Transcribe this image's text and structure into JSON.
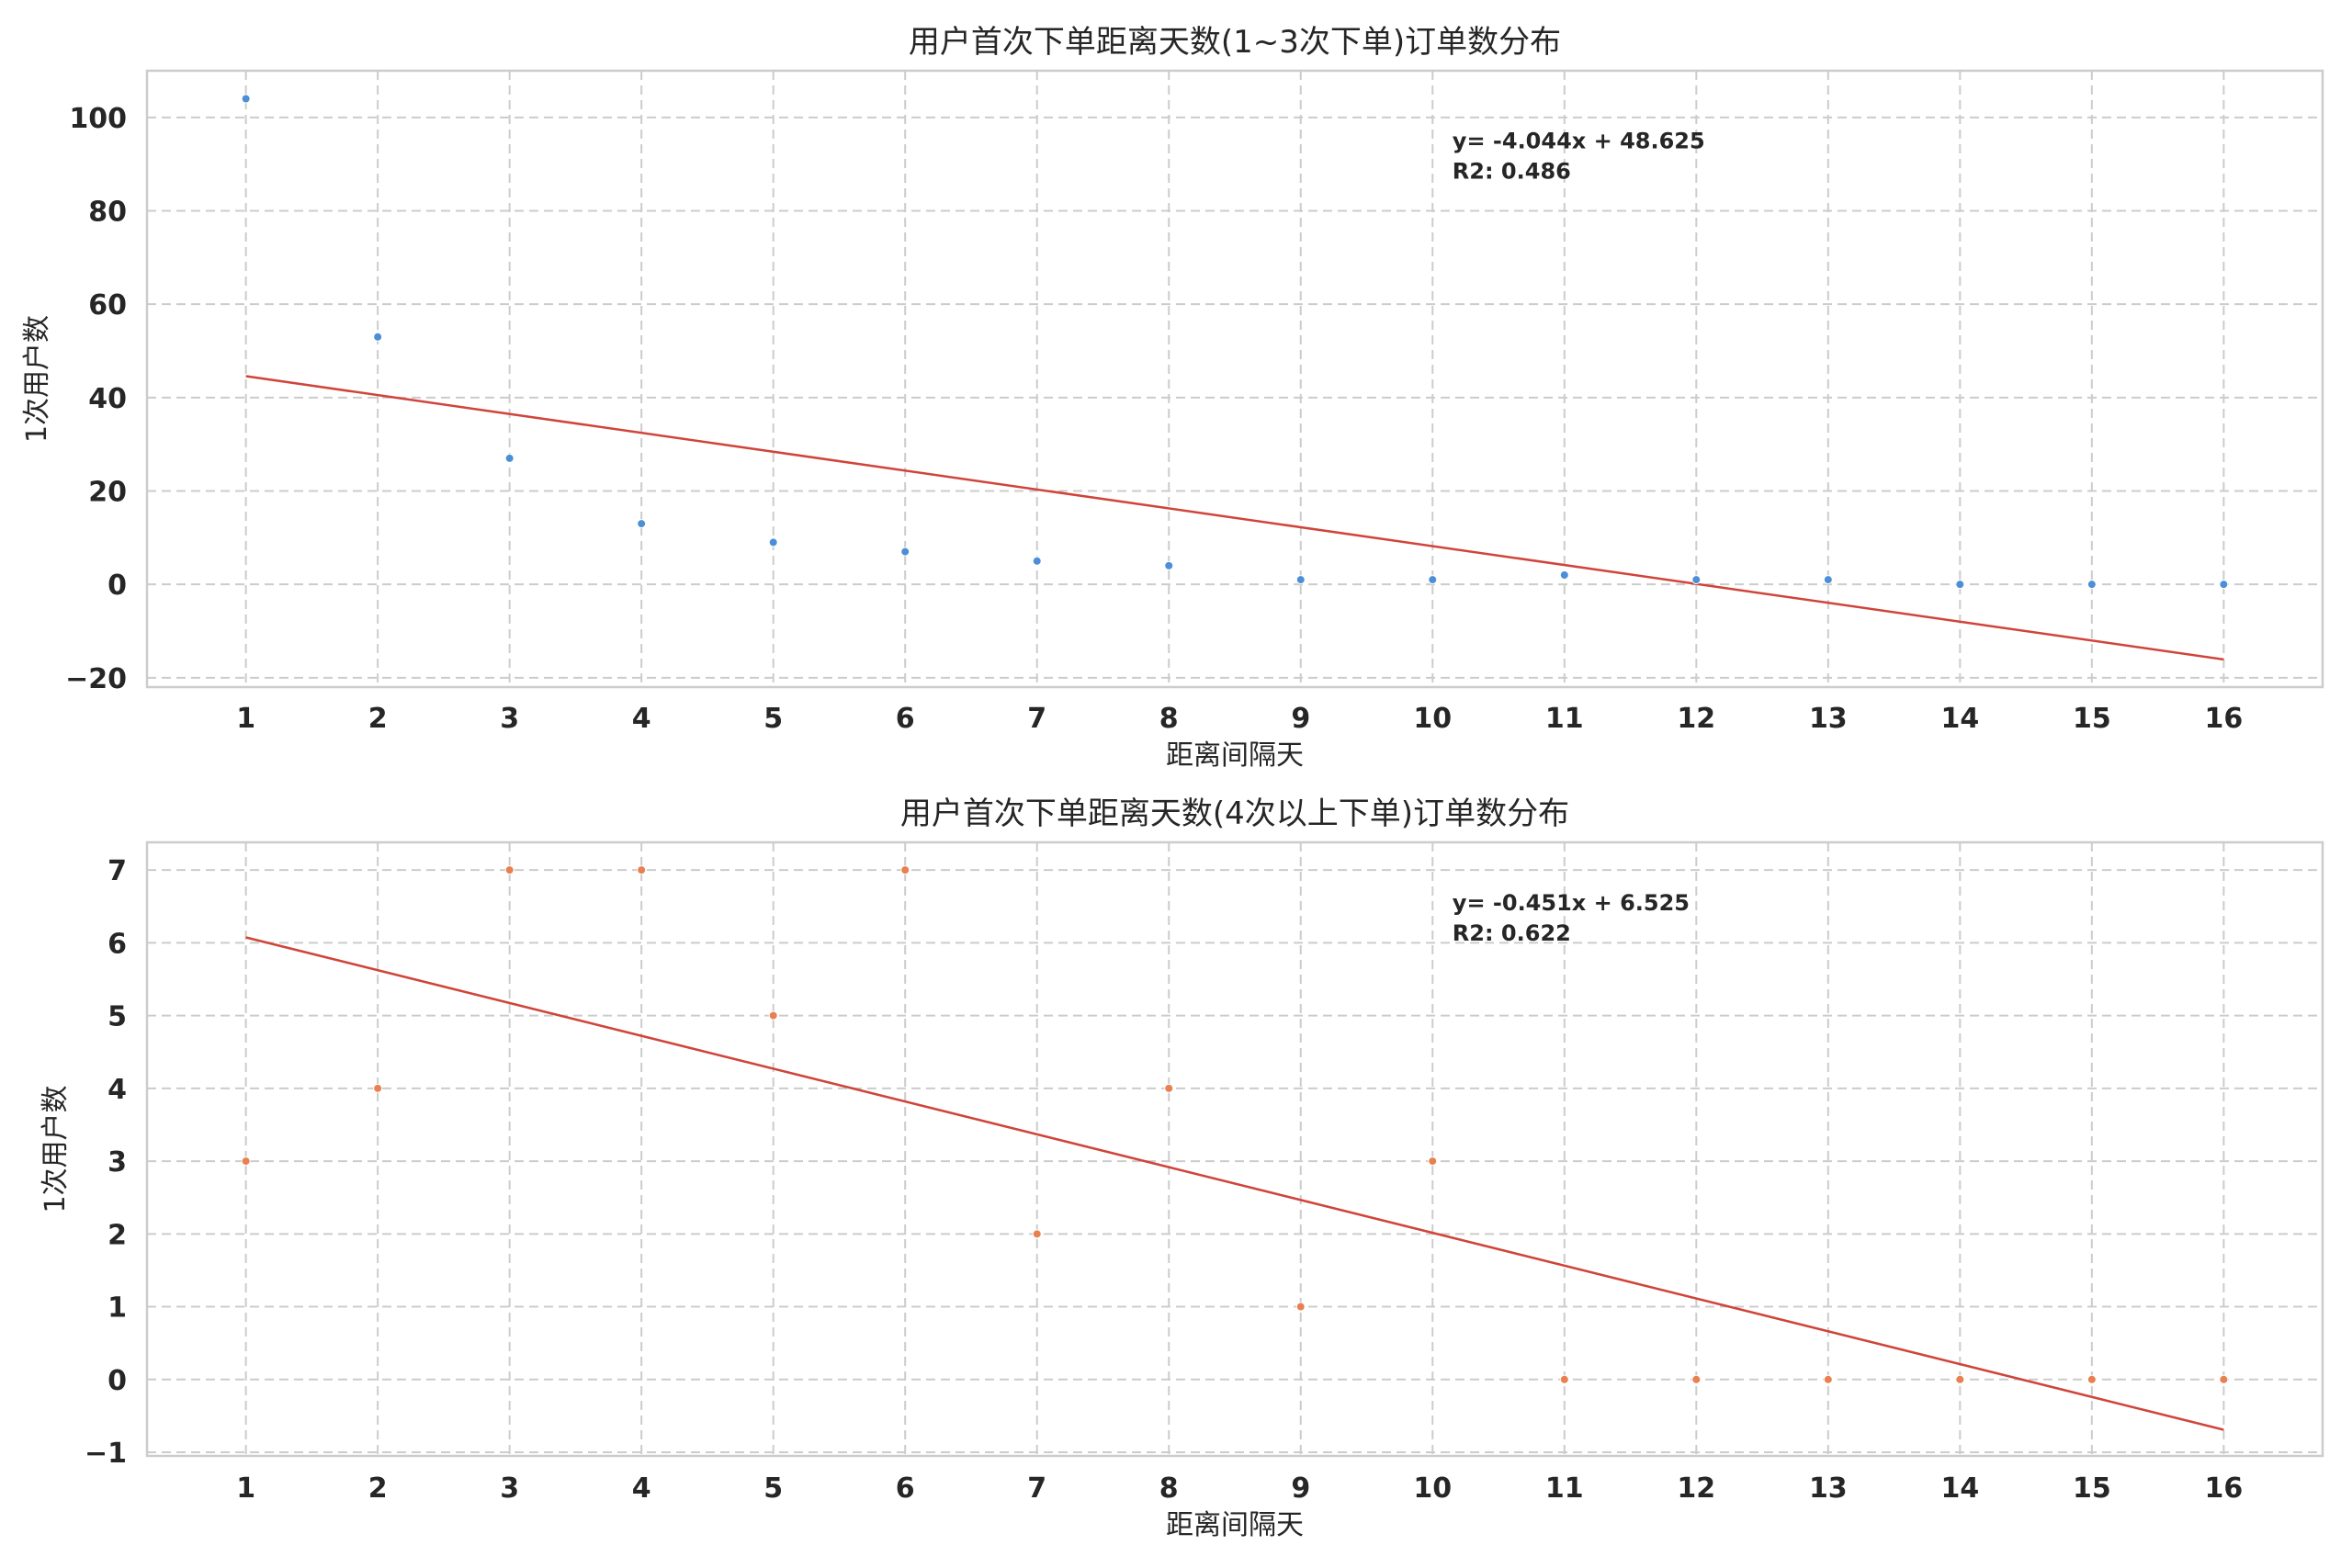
{
  "chart_data": [
    {
      "type": "scatter",
      "title": "用户首次下单距离天数(1~3次下单)订单数分布",
      "xlabel": "距离间隔天",
      "ylabel": "1次用户数",
      "xlim": [
        0.25,
        16.75
      ],
      "ylim": [
        -22,
        110
      ],
      "xticks": [
        1,
        2,
        3,
        4,
        5,
        6,
        7,
        8,
        9,
        10,
        11,
        12,
        13,
        14,
        15,
        16
      ],
      "yticks": [
        -20,
        0,
        20,
        40,
        60,
        80,
        100
      ],
      "ytick_labels": [
        "−20",
        "0",
        "20",
        "40",
        "60",
        "80",
        "100"
      ],
      "grid": true,
      "point_color": "#4c8fd6",
      "series": [
        {
          "x": [
            1,
            2,
            3,
            4,
            5,
            6,
            7,
            8,
            9,
            10,
            11,
            12,
            13,
            14,
            15,
            16
          ],
          "y": [
            104,
            53,
            27,
            13,
            9,
            7,
            5,
            4,
            1,
            1,
            2,
            1,
            1,
            0,
            0,
            0
          ]
        }
      ],
      "trendline": {
        "slope": -4.044,
        "intercept": 48.625,
        "color": "#d0443a",
        "x_range": [
          1,
          16
        ]
      },
      "annotation": {
        "line1": "y= -4.044x + 48.625",
        "line2": "R2: 0.486",
        "x": 10.15,
        "y": 95
      }
    },
    {
      "type": "scatter",
      "title": "用户首次下单距离天数(4次以上下单)订单数分布",
      "xlabel": "距离间隔天",
      "ylabel": "1次用户数",
      "xlim": [
        0.25,
        16.75
      ],
      "ylim": [
        -1.05,
        7.38
      ],
      "xticks": [
        1,
        2,
        3,
        4,
        5,
        6,
        7,
        8,
        9,
        10,
        11,
        12,
        13,
        14,
        15,
        16
      ],
      "yticks": [
        -1,
        0,
        1,
        2,
        3,
        4,
        5,
        6,
        7
      ],
      "ytick_labels": [
        "−1",
        "0",
        "1",
        "2",
        "3",
        "4",
        "5",
        "6",
        "7"
      ],
      "grid": true,
      "point_color": "#e8804f",
      "series": [
        {
          "x": [
            1,
            2,
            3,
            4,
            5,
            6,
            7,
            8,
            9,
            10,
            11,
            12,
            13,
            14,
            15,
            16
          ],
          "y": [
            3,
            4,
            7,
            7,
            5,
            7,
            2,
            4,
            1,
            3,
            0,
            0,
            0,
            0,
            0,
            0
          ]
        }
      ],
      "trendline": {
        "slope": -0.451,
        "intercept": 6.525,
        "color": "#d0443a",
        "x_range": [
          1,
          16
        ]
      },
      "annotation": {
        "line1": "y= -0.451x + 6.525",
        "line2": "R2: 0.622",
        "x": 10.15,
        "y": 6.55
      }
    }
  ]
}
